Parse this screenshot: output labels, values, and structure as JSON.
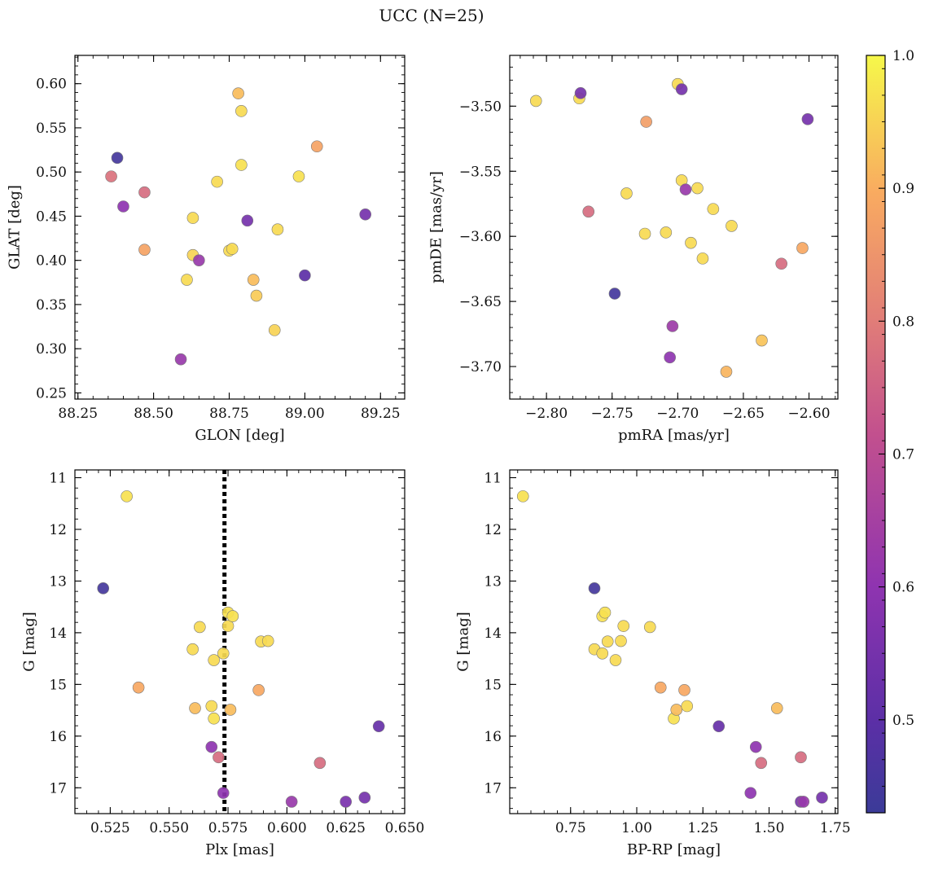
{
  "title": "UCC (N=25)",
  "colorbar": {
    "range": [
      0.43,
      1.0
    ],
    "ticks": [
      0.5,
      0.6,
      0.7,
      0.8,
      0.9,
      1.0
    ],
    "tick_labels": [
      "0.5",
      "0.6",
      "0.7",
      "0.8",
      "0.9",
      "1.0"
    ]
  },
  "chart_data": [
    {
      "type": "scatter",
      "xlabel": "GLON [deg]",
      "ylabel": "GLAT [deg]",
      "xlim": [
        88.24,
        89.33
      ],
      "ylim": [
        0.243,
        0.632
      ],
      "xticks": [
        88.25,
        88.5,
        88.75,
        89.0,
        89.25
      ],
      "xtick_labels": [
        "88.25",
        "88.50",
        "88.75",
        "89.00",
        "89.25"
      ],
      "yticks": [
        0.25,
        0.3,
        0.35,
        0.4,
        0.45,
        0.5,
        0.55,
        0.6
      ],
      "ytick_labels": [
        "0.25",
        "0.30",
        "0.35",
        "0.40",
        "0.45",
        "0.50",
        "0.55",
        "0.60"
      ],
      "xminor": 0.05,
      "yminor": 0.01,
      "points": [
        {
          "x": 88.38,
          "y": 0.516,
          "c": 0.45
        },
        {
          "x": 88.36,
          "y": 0.495,
          "c": 0.78
        },
        {
          "x": 88.4,
          "y": 0.461,
          "c": 0.6
        },
        {
          "x": 88.47,
          "y": 0.477,
          "c": 0.77
        },
        {
          "x": 88.47,
          "y": 0.412,
          "c": 0.88
        },
        {
          "x": 88.59,
          "y": 0.288,
          "c": 0.62
        },
        {
          "x": 88.61,
          "y": 0.378,
          "c": 0.96
        },
        {
          "x": 88.63,
          "y": 0.448,
          "c": 0.96
        },
        {
          "x": 88.63,
          "y": 0.406,
          "c": 0.95
        },
        {
          "x": 88.65,
          "y": 0.4,
          "c": 0.62
        },
        {
          "x": 88.71,
          "y": 0.489,
          "c": 0.96
        },
        {
          "x": 88.75,
          "y": 0.411,
          "c": 0.96
        },
        {
          "x": 88.76,
          "y": 0.413,
          "c": 0.96
        },
        {
          "x": 88.78,
          "y": 0.589,
          "c": 0.92
        },
        {
          "x": 88.79,
          "y": 0.569,
          "c": 0.96
        },
        {
          "x": 88.79,
          "y": 0.508,
          "c": 0.97
        },
        {
          "x": 88.81,
          "y": 0.445,
          "c": 0.55
        },
        {
          "x": 88.83,
          "y": 0.378,
          "c": 0.92
        },
        {
          "x": 88.84,
          "y": 0.36,
          "c": 0.94
        },
        {
          "x": 88.9,
          "y": 0.321,
          "c": 0.95
        },
        {
          "x": 88.91,
          "y": 0.435,
          "c": 0.96
        },
        {
          "x": 88.98,
          "y": 0.495,
          "c": 0.97
        },
        {
          "x": 89.0,
          "y": 0.383,
          "c": 0.5
        },
        {
          "x": 89.04,
          "y": 0.529,
          "c": 0.88
        },
        {
          "x": 89.2,
          "y": 0.452,
          "c": 0.55
        }
      ]
    },
    {
      "type": "scatter",
      "xlabel": "pmRA [mas/yr]",
      "ylabel": "pmDE [mas/yr]",
      "xlim": [
        -2.828,
        -2.578
      ],
      "ylim": [
        -3.725,
        -3.461
      ],
      "xticks": [
        -2.8,
        -2.75,
        -2.7,
        -2.65,
        -2.6
      ],
      "xtick_labels": [
        "−2.80",
        "−2.75",
        "−2.70",
        "−2.65",
        "−2.60"
      ],
      "yticks": [
        -3.7,
        -3.65,
        -3.6,
        -3.55,
        -3.5
      ],
      "ytick_labels": [
        "−3.70",
        "−3.65",
        "−3.60",
        "−3.55",
        "−3.50"
      ],
      "xminor": 0.01,
      "yminor": 0.01,
      "points": [
        {
          "x": -2.808,
          "y": -3.496,
          "c": 0.96
        },
        {
          "x": -2.775,
          "y": -3.494,
          "c": 0.96
        },
        {
          "x": -2.774,
          "y": -3.49,
          "c": 0.55
        },
        {
          "x": -2.768,
          "y": -3.581,
          "c": 0.77
        },
        {
          "x": -2.748,
          "y": -3.644,
          "c": 0.45
        },
        {
          "x": -2.739,
          "y": -3.567,
          "c": 0.96
        },
        {
          "x": -2.725,
          "y": -3.598,
          "c": 0.96
        },
        {
          "x": -2.724,
          "y": -3.512,
          "c": 0.87
        },
        {
          "x": -2.709,
          "y": -3.597,
          "c": 0.96
        },
        {
          "x": -2.706,
          "y": -3.693,
          "c": 0.6
        },
        {
          "x": -2.704,
          "y": -3.669,
          "c": 0.63
        },
        {
          "x": -2.7,
          "y": -3.483,
          "c": 0.96
        },
        {
          "x": -2.697,
          "y": -3.557,
          "c": 0.96
        },
        {
          "x": -2.697,
          "y": -3.487,
          "c": 0.55
        },
        {
          "x": -2.694,
          "y": -3.564,
          "c": 0.62
        },
        {
          "x": -2.69,
          "y": -3.605,
          "c": 0.96
        },
        {
          "x": -2.685,
          "y": -3.563,
          "c": 0.96
        },
        {
          "x": -2.681,
          "y": -3.617,
          "c": 0.96
        },
        {
          "x": -2.673,
          "y": -3.579,
          "c": 0.96
        },
        {
          "x": -2.663,
          "y": -3.704,
          "c": 0.91
        },
        {
          "x": -2.659,
          "y": -3.592,
          "c": 0.96
        },
        {
          "x": -2.636,
          "y": -3.68,
          "c": 0.93
        },
        {
          "x": -2.621,
          "y": -3.621,
          "c": 0.77
        },
        {
          "x": -2.605,
          "y": -3.609,
          "c": 0.89
        },
        {
          "x": -2.601,
          "y": -3.51,
          "c": 0.55
        }
      ]
    },
    {
      "type": "scatter",
      "xlabel": "Plx [mas]",
      "ylabel": "G [mag]",
      "xlim": [
        0.51,
        0.65
      ],
      "ylim": [
        17.5,
        10.85
      ],
      "xticks": [
        0.525,
        0.55,
        0.575,
        0.6,
        0.625,
        0.65
      ],
      "xtick_labels": [
        "0.525",
        "0.550",
        "0.575",
        "0.600",
        "0.625",
        "0.650"
      ],
      "yticks": [
        11,
        12,
        13,
        14,
        15,
        16,
        17
      ],
      "ytick_labels": [
        "11",
        "12",
        "13",
        "14",
        "15",
        "16",
        "17"
      ],
      "xminor": 0.005,
      "yminor": 0.2,
      "vline": 0.5735,
      "points": [
        {
          "x": 0.532,
          "y": 11.36,
          "c": 0.97
        },
        {
          "x": 0.522,
          "y": 13.14,
          "c": 0.45
        },
        {
          "x": 0.563,
          "y": 13.89,
          "c": 0.96
        },
        {
          "x": 0.56,
          "y": 14.32,
          "c": 0.96
        },
        {
          "x": 0.537,
          "y": 15.06,
          "c": 0.89
        },
        {
          "x": 0.561,
          "y": 15.46,
          "c": 0.92
        },
        {
          "x": 0.569,
          "y": 14.53,
          "c": 0.96
        },
        {
          "x": 0.573,
          "y": 14.4,
          "c": 0.96
        },
        {
          "x": 0.575,
          "y": 13.61,
          "c": 0.97
        },
        {
          "x": 0.575,
          "y": 13.87,
          "c": 0.96
        },
        {
          "x": 0.577,
          "y": 13.68,
          "c": 0.97
        },
        {
          "x": 0.568,
          "y": 15.42,
          "c": 0.96
        },
        {
          "x": 0.569,
          "y": 15.66,
          "c": 0.97
        },
        {
          "x": 0.576,
          "y": 15.49,
          "c": 0.92
        },
        {
          "x": 0.568,
          "y": 16.21,
          "c": 0.6
        },
        {
          "x": 0.571,
          "y": 16.41,
          "c": 0.77
        },
        {
          "x": 0.573,
          "y": 17.1,
          "c": 0.6
        },
        {
          "x": 0.588,
          "y": 15.11,
          "c": 0.89
        },
        {
          "x": 0.589,
          "y": 14.17,
          "c": 0.96
        },
        {
          "x": 0.592,
          "y": 14.16,
          "c": 0.96
        },
        {
          "x": 0.602,
          "y": 17.27,
          "c": 0.62
        },
        {
          "x": 0.614,
          "y": 16.52,
          "c": 0.77
        },
        {
          "x": 0.625,
          "y": 17.27,
          "c": 0.56
        },
        {
          "x": 0.633,
          "y": 17.19,
          "c": 0.55
        },
        {
          "x": 0.639,
          "y": 15.81,
          "c": 0.52
        }
      ]
    },
    {
      "type": "scatter",
      "xlabel": "BP-RP [mag]",
      "ylabel": "G [mag]",
      "xlim": [
        0.52,
        1.76
      ],
      "ylim": [
        17.5,
        10.85
      ],
      "xticks": [
        0.75,
        1.0,
        1.25,
        1.5,
        1.75
      ],
      "xtick_labels": [
        "0.75",
        "1.00",
        "1.25",
        "1.50",
        "1.75"
      ],
      "yticks": [
        11,
        12,
        13,
        14,
        15,
        16,
        17
      ],
      "ytick_labels": [
        "11",
        "12",
        "13",
        "14",
        "15",
        "16",
        "17"
      ],
      "xminor": 0.05,
      "yminor": 0.2,
      "points": [
        {
          "x": 0.57,
          "y": 11.36,
          "c": 0.97
        },
        {
          "x": 0.84,
          "y": 13.14,
          "c": 0.45
        },
        {
          "x": 0.87,
          "y": 13.68,
          "c": 0.97
        },
        {
          "x": 0.88,
          "y": 13.61,
          "c": 0.97
        },
        {
          "x": 0.84,
          "y": 14.32,
          "c": 0.96
        },
        {
          "x": 0.87,
          "y": 14.4,
          "c": 0.96
        },
        {
          "x": 0.89,
          "y": 14.17,
          "c": 0.96
        },
        {
          "x": 0.92,
          "y": 14.53,
          "c": 0.96
        },
        {
          "x": 0.94,
          "y": 14.16,
          "c": 0.96
        },
        {
          "x": 0.95,
          "y": 13.87,
          "c": 0.96
        },
        {
          "x": 1.05,
          "y": 13.89,
          "c": 0.96
        },
        {
          "x": 1.09,
          "y": 15.06,
          "c": 0.89
        },
        {
          "x": 1.14,
          "y": 15.66,
          "c": 0.97
        },
        {
          "x": 1.15,
          "y": 15.49,
          "c": 0.92
        },
        {
          "x": 1.18,
          "y": 15.11,
          "c": 0.89
        },
        {
          "x": 1.19,
          "y": 15.42,
          "c": 0.96
        },
        {
          "x": 1.31,
          "y": 15.81,
          "c": 0.52
        },
        {
          "x": 1.43,
          "y": 17.1,
          "c": 0.6
        },
        {
          "x": 1.45,
          "y": 16.21,
          "c": 0.6
        },
        {
          "x": 1.47,
          "y": 16.52,
          "c": 0.77
        },
        {
          "x": 1.53,
          "y": 15.46,
          "c": 0.92
        },
        {
          "x": 1.62,
          "y": 16.41,
          "c": 0.77
        },
        {
          "x": 1.62,
          "y": 17.27,
          "c": 0.56
        },
        {
          "x": 1.63,
          "y": 17.27,
          "c": 0.62
        },
        {
          "x": 1.7,
          "y": 17.19,
          "c": 0.55
        }
      ]
    }
  ]
}
